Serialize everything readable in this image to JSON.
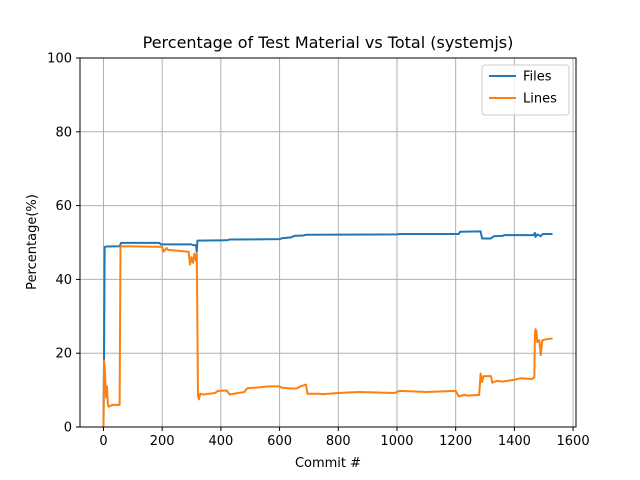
{
  "chart_data": {
    "type": "line",
    "title": "Percentage of Test Material vs Total (systemjs)",
    "xlabel": "Commit #",
    "ylabel": "Percentage(%)",
    "xlim": [
      -80,
      1610
    ],
    "ylim": [
      0,
      100
    ],
    "xticks": [
      0,
      200,
      400,
      600,
      800,
      1000,
      1200,
      1400,
      1600
    ],
    "yticks": [
      0,
      20,
      40,
      60,
      80,
      100
    ],
    "grid": true,
    "legend_position": "top-right",
    "series": [
      {
        "name": "Files",
        "color": "#1f77b4",
        "points": [
          [
            0,
            0
          ],
          [
            2,
            20
          ],
          [
            4,
            48.8
          ],
          [
            10,
            48.9
          ],
          [
            55,
            49.0
          ],
          [
            60,
            49.9
          ],
          [
            190,
            49.9
          ],
          [
            195,
            49.5
          ],
          [
            300,
            49.5
          ],
          [
            305,
            49.3
          ],
          [
            315,
            49.3
          ],
          [
            318,
            47.5
          ],
          [
            320,
            50.5
          ],
          [
            420,
            50.6
          ],
          [
            430,
            50.8
          ],
          [
            600,
            50.9
          ],
          [
            610,
            51.2
          ],
          [
            640,
            51.4
          ],
          [
            650,
            51.8
          ],
          [
            680,
            51.9
          ],
          [
            690,
            52.1
          ],
          [
            1000,
            52.2
          ],
          [
            1010,
            52.3
          ],
          [
            1210,
            52.3
          ],
          [
            1215,
            52.9
          ],
          [
            1285,
            53.0
          ],
          [
            1290,
            51.1
          ],
          [
            1320,
            51.1
          ],
          [
            1330,
            51.7
          ],
          [
            1360,
            51.8
          ],
          [
            1365,
            52.0
          ],
          [
            1465,
            52.0
          ],
          [
            1470,
            52.6
          ],
          [
            1472,
            51.5
          ],
          [
            1478,
            52.2
          ],
          [
            1490,
            51.7
          ],
          [
            1495,
            52.2
          ],
          [
            1500,
            52.3
          ],
          [
            1530,
            52.3
          ]
        ]
      },
      {
        "name": "Lines",
        "color": "#ff7f0e",
        "points": [
          [
            0,
            0
          ],
          [
            2,
            18
          ],
          [
            5,
            15
          ],
          [
            7,
            11
          ],
          [
            9,
            8
          ],
          [
            12,
            11
          ],
          [
            15,
            6
          ],
          [
            18,
            5.5
          ],
          [
            30,
            6
          ],
          [
            55,
            6
          ],
          [
            58,
            49
          ],
          [
            200,
            48.8
          ],
          [
            205,
            47.5
          ],
          [
            215,
            48.5
          ],
          [
            220,
            48
          ],
          [
            290,
            47.5
          ],
          [
            295,
            44
          ],
          [
            300,
            46
          ],
          [
            305,
            44.5
          ],
          [
            310,
            47
          ],
          [
            315,
            45
          ],
          [
            318,
            47
          ],
          [
            322,
            8.5
          ],
          [
            325,
            7.5
          ],
          [
            330,
            9
          ],
          [
            340,
            8.8
          ],
          [
            380,
            9.2
          ],
          [
            390,
            9.8
          ],
          [
            420,
            9.9
          ],
          [
            430,
            8.8
          ],
          [
            480,
            9.5
          ],
          [
            490,
            10.5
          ],
          [
            540,
            10.8
          ],
          [
            560,
            11.0
          ],
          [
            600,
            11.0
          ],
          [
            610,
            10.6
          ],
          [
            650,
            10.4
          ],
          [
            660,
            10.5
          ],
          [
            670,
            11
          ],
          [
            690,
            11.5
          ],
          [
            695,
            9.0
          ],
          [
            730,
            9.0
          ],
          [
            750,
            8.9
          ],
          [
            800,
            9.2
          ],
          [
            870,
            9.5
          ],
          [
            990,
            9.2
          ],
          [
            1000,
            9.5
          ],
          [
            1010,
            9.8
          ],
          [
            1100,
            9.5
          ],
          [
            1200,
            9.8
          ],
          [
            1210,
            8.3
          ],
          [
            1230,
            8.7
          ],
          [
            1240,
            8.5
          ],
          [
            1280,
            8.7
          ],
          [
            1285,
            14.5
          ],
          [
            1290,
            12.2
          ],
          [
            1295,
            13.8
          ],
          [
            1320,
            13.8
          ],
          [
            1325,
            12
          ],
          [
            1340,
            12.5
          ],
          [
            1360,
            12.3
          ],
          [
            1400,
            12.8
          ],
          [
            1420,
            13.2
          ],
          [
            1460,
            13.0
          ],
          [
            1468,
            13.5
          ],
          [
            1470,
            25
          ],
          [
            1472,
            26.5
          ],
          [
            1475,
            26
          ],
          [
            1478,
            23
          ],
          [
            1485,
            23.5
          ],
          [
            1490,
            19.5
          ],
          [
            1495,
            23.5
          ],
          [
            1510,
            23.8
          ],
          [
            1530,
            24.0
          ]
        ]
      }
    ]
  }
}
